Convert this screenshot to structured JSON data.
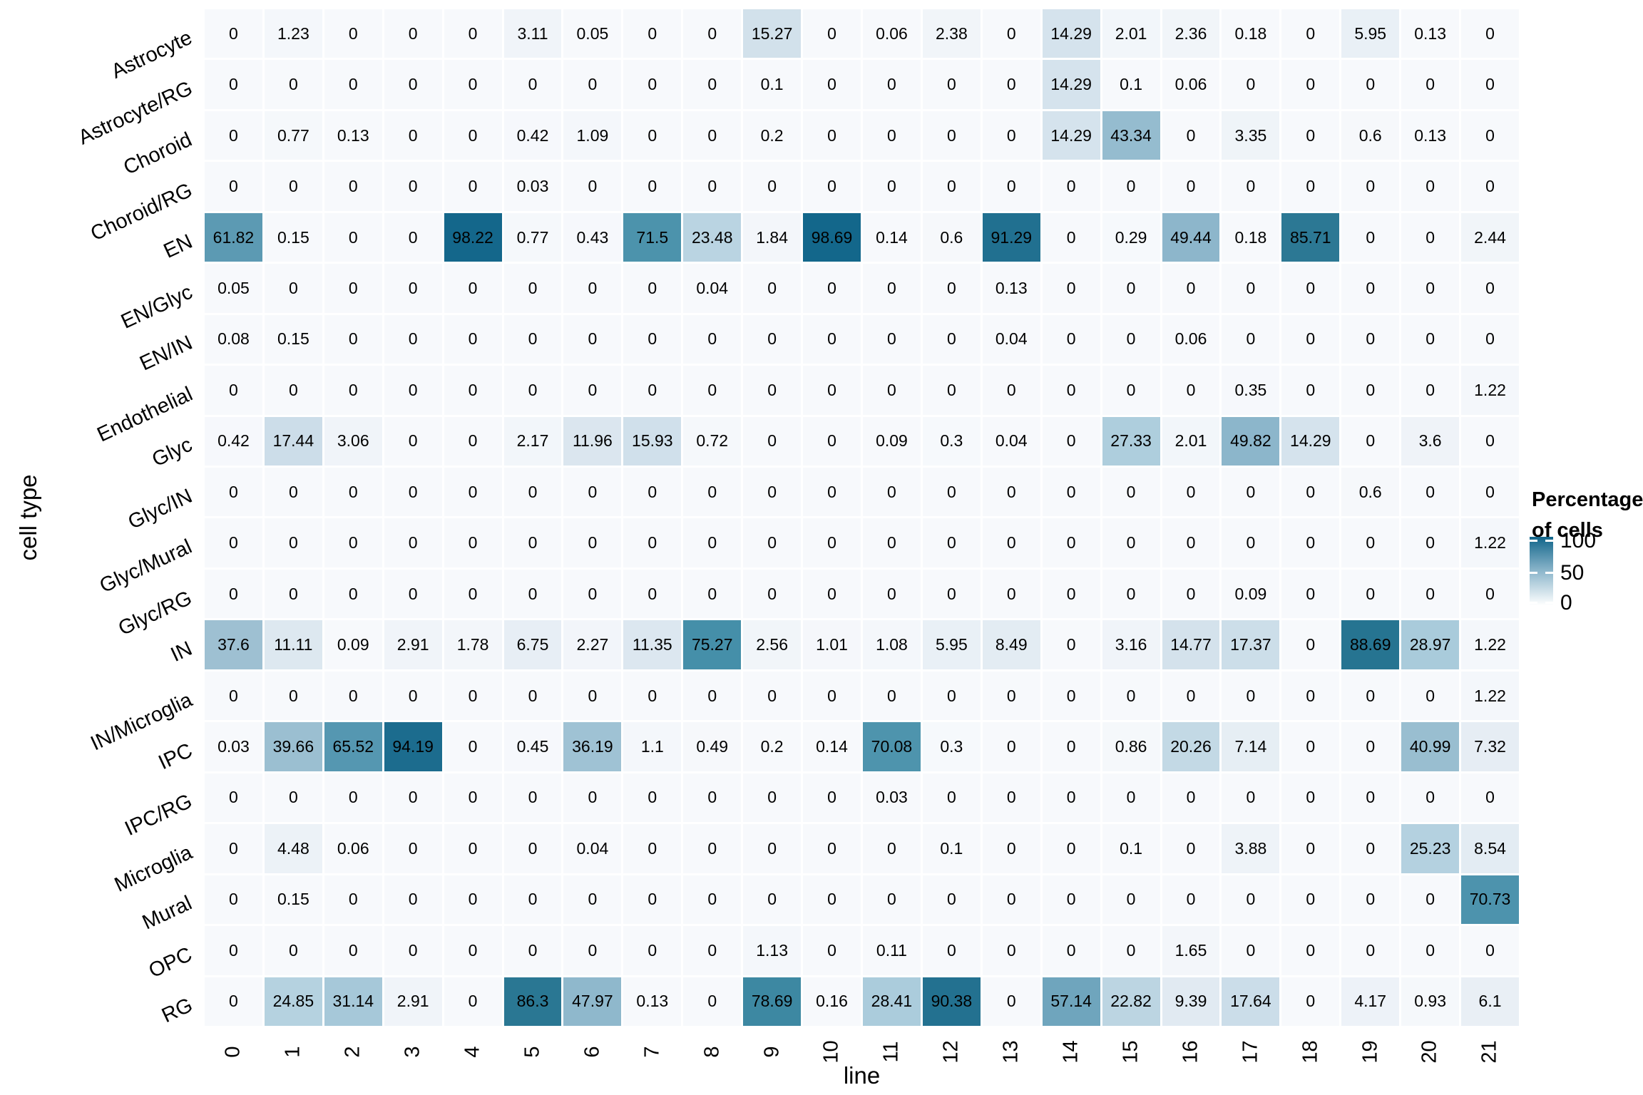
{
  "figure": {
    "background": "#ffffff",
    "x_axis_title": "line",
    "y_axis_title": "cell type"
  },
  "legend": {
    "title_line1": "Percentage",
    "title_line2": "of cells",
    "ticks": [
      "100",
      "50",
      "0"
    ],
    "gradient_top": "#11658a",
    "gradient_mid": "#8cb6cb",
    "gradient_bottom": "#ffffff"
  },
  "chart_data": {
    "type": "heatmap",
    "title": "",
    "xlabel": "line",
    "ylabel": "cell type",
    "legend_title": "Percentage of cells",
    "value_range": [
      0,
      100
    ],
    "grid": "white gaps between tiles",
    "legend_position": "right",
    "x": [
      "0",
      "1",
      "2",
      "3",
      "4",
      "5",
      "6",
      "7",
      "8",
      "9",
      "10",
      "11",
      "12",
      "13",
      "14",
      "15",
      "16",
      "17",
      "18",
      "19",
      "20",
      "21"
    ],
    "rows": [
      {
        "name": "Astrocyte",
        "values": [
          0,
          1.23,
          0,
          0,
          0,
          3.11,
          0.05,
          0,
          0,
          15.27,
          0,
          0.06,
          2.38,
          0,
          14.29,
          2.01,
          2.36,
          0.18,
          0,
          5.95,
          0.13,
          0
        ]
      },
      {
        "name": "Astrocyte/RG",
        "values": [
          0,
          0,
          0,
          0,
          0,
          0,
          0,
          0,
          0,
          0.1,
          0,
          0,
          0,
          0,
          14.29,
          0.1,
          0.06,
          0,
          0,
          0,
          0,
          0
        ]
      },
      {
        "name": "Choroid",
        "values": [
          0,
          0.77,
          0.13,
          0,
          0,
          0.42,
          1.09,
          0,
          0,
          0.2,
          0,
          0,
          0,
          0,
          14.29,
          43.34,
          0,
          3.35,
          0,
          0.6,
          0.13,
          0
        ]
      },
      {
        "name": "Choroid/RG",
        "values": [
          0,
          0,
          0,
          0,
          0,
          0.03,
          0,
          0,
          0,
          0,
          0,
          0,
          0,
          0,
          0,
          0,
          0,
          0,
          0,
          0,
          0,
          0
        ]
      },
      {
        "name": "EN",
        "values": [
          61.82,
          0.15,
          0,
          0,
          98.22,
          0.77,
          0.43,
          71.5,
          23.48,
          1.84,
          98.69,
          0.14,
          0.6,
          91.29,
          0,
          0.29,
          49.44,
          0.18,
          85.71,
          0,
          0,
          2.44
        ]
      },
      {
        "name": "EN/Glyc",
        "values": [
          0.05,
          0,
          0,
          0,
          0,
          0,
          0,
          0,
          0.04,
          0,
          0,
          0,
          0,
          0.13,
          0,
          0,
          0,
          0,
          0,
          0,
          0,
          0
        ]
      },
      {
        "name": "EN/IN",
        "values": [
          0.08,
          0.15,
          0,
          0,
          0,
          0,
          0,
          0,
          0,
          0,
          0,
          0,
          0,
          0.04,
          0,
          0,
          0.06,
          0,
          0,
          0,
          0,
          0
        ]
      },
      {
        "name": "Endothelial",
        "values": [
          0,
          0,
          0,
          0,
          0,
          0,
          0,
          0,
          0,
          0,
          0,
          0,
          0,
          0,
          0,
          0,
          0,
          0.35,
          0,
          0,
          0,
          1.22
        ]
      },
      {
        "name": "Glyc",
        "values": [
          0.42,
          17.44,
          3.06,
          0,
          0,
          2.17,
          11.96,
          15.93,
          0.72,
          0,
          0,
          0.09,
          0.3,
          0.04,
          0,
          27.33,
          2.01,
          49.82,
          14.29,
          0,
          3.6,
          0
        ]
      },
      {
        "name": "Glyc/IN",
        "values": [
          0,
          0,
          0,
          0,
          0,
          0,
          0,
          0,
          0,
          0,
          0,
          0,
          0,
          0,
          0,
          0,
          0,
          0,
          0,
          0.6,
          0,
          0
        ]
      },
      {
        "name": "Glyc/Mural",
        "values": [
          0,
          0,
          0,
          0,
          0,
          0,
          0,
          0,
          0,
          0,
          0,
          0,
          0,
          0,
          0,
          0,
          0,
          0,
          0,
          0,
          0,
          1.22
        ]
      },
      {
        "name": "Glyc/RG",
        "values": [
          0,
          0,
          0,
          0,
          0,
          0,
          0,
          0,
          0,
          0,
          0,
          0,
          0,
          0,
          0,
          0,
          0,
          0.09,
          0,
          0,
          0,
          0
        ]
      },
      {
        "name": "IN",
        "values": [
          37.6,
          11.11,
          0.09,
          2.91,
          1.78,
          6.75,
          2.27,
          11.35,
          75.27,
          2.56,
          1.01,
          1.08,
          5.95,
          8.49,
          0,
          3.16,
          14.77,
          17.37,
          0,
          88.69,
          28.97,
          1.22
        ]
      },
      {
        "name": "IN/Microglia",
        "values": [
          0,
          0,
          0,
          0,
          0,
          0,
          0,
          0,
          0,
          0,
          0,
          0,
          0,
          0,
          0,
          0,
          0,
          0,
          0,
          0,
          0,
          1.22
        ]
      },
      {
        "name": "IPC",
        "values": [
          0.03,
          39.66,
          65.52,
          94.19,
          0,
          0.45,
          36.19,
          1.1,
          0.49,
          0.2,
          0.14,
          70.08,
          0.3,
          0,
          0,
          0.86,
          20.26,
          7.14,
          0,
          0,
          40.99,
          7.32
        ]
      },
      {
        "name": "IPC/RG",
        "values": [
          0,
          0,
          0,
          0,
          0,
          0,
          0,
          0,
          0,
          0,
          0,
          0.03,
          0,
          0,
          0,
          0,
          0,
          0,
          0,
          0,
          0,
          0
        ]
      },
      {
        "name": "Microglia",
        "values": [
          0,
          4.48,
          0.06,
          0,
          0,
          0,
          0.04,
          0,
          0,
          0,
          0,
          0,
          0.1,
          0,
          0,
          0.1,
          0,
          3.88,
          0,
          0,
          25.23,
          8.54
        ]
      },
      {
        "name": "Mural",
        "values": [
          0,
          0.15,
          0,
          0,
          0,
          0,
          0,
          0,
          0,
          0,
          0,
          0,
          0,
          0,
          0,
          0,
          0,
          0,
          0,
          0,
          0,
          70.73
        ]
      },
      {
        "name": "OPC",
        "values": [
          0,
          0,
          0,
          0,
          0,
          0,
          0,
          0,
          0,
          1.13,
          0,
          0.11,
          0,
          0,
          0,
          0,
          1.65,
          0,
          0,
          0,
          0,
          0
        ]
      },
      {
        "name": "RG",
        "values": [
          0,
          24.85,
          31.14,
          2.91,
          0,
          86.3,
          47.97,
          0.13,
          0,
          78.69,
          0.16,
          28.41,
          90.38,
          0,
          57.14,
          22.82,
          9.39,
          17.64,
          0,
          4.17,
          0.93,
          6.1
        ]
      }
    ],
    "colorscale": {
      "domain": [
        0,
        14,
        29,
        38,
        50,
        62,
        75,
        86,
        100
      ],
      "colors": [
        "#f7f9fc",
        "#d6e3ed",
        "#a9cbdb",
        "#9dc0d2",
        "#8cb6cb",
        "#5b9ab3",
        "#4690aa",
        "#2b7793",
        "#11658a"
      ]
    }
  }
}
